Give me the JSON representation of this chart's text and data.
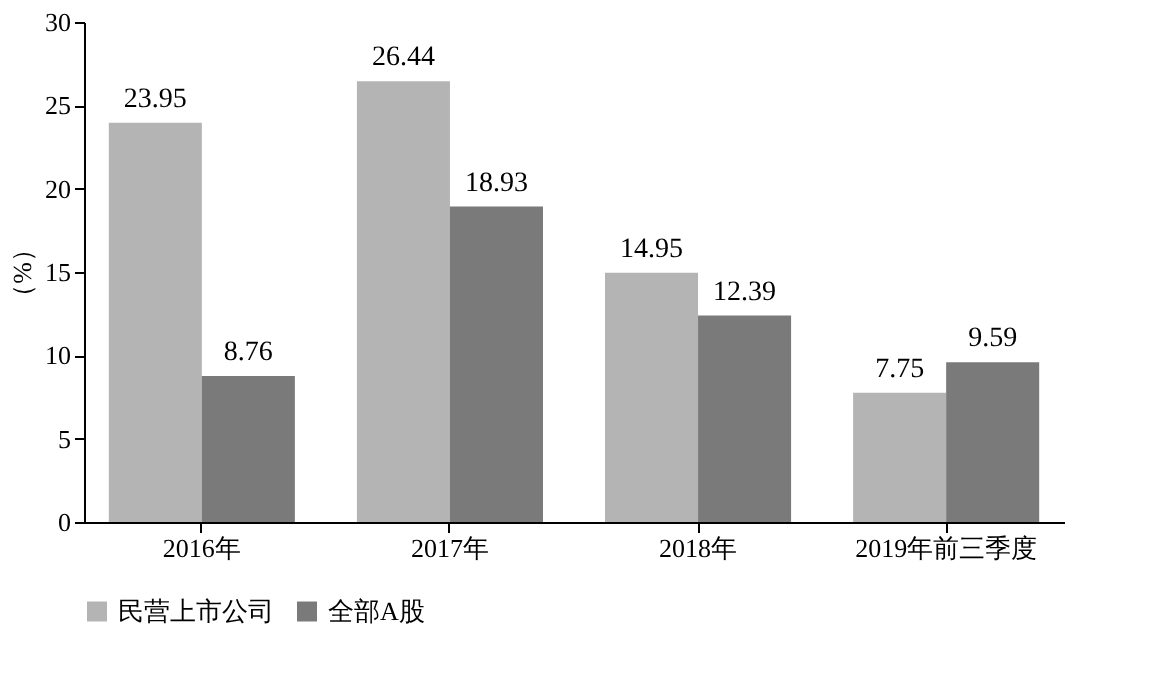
{
  "chart_data": {
    "type": "bar",
    "ylabel": "（%）",
    "categories": [
      "2016年",
      "2017年",
      "2018年",
      "2019年前三季度"
    ],
    "series": [
      {
        "name": "民营上市公司",
        "color": "#b4b4b4",
        "values": [
          23.95,
          26.44,
          14.95,
          7.75
        ]
      },
      {
        "name": "全部A股",
        "color": "#7a7a7a",
        "values": [
          8.76,
          18.93,
          12.39,
          9.59
        ]
      }
    ],
    "ylim": [
      0,
      30
    ],
    "yticks": [
      0,
      5,
      10,
      15,
      20,
      25,
      30
    ],
    "grid": false,
    "legend": "bottom",
    "data_labels": true
  }
}
